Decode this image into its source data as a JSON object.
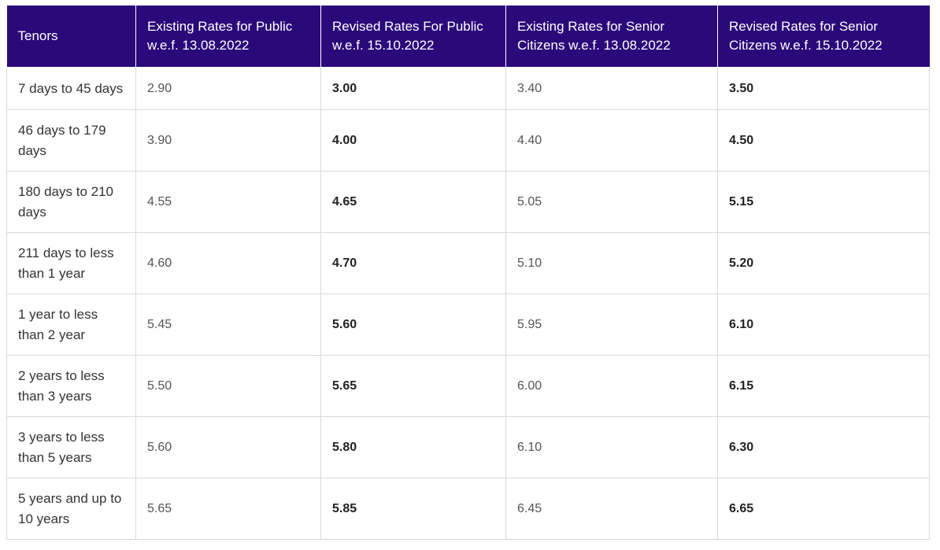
{
  "table": {
    "headers": [
      "Tenors",
      "Existing Rates for Public w.e.f. 13.08.2022",
      "Revised Rates For Public w.e.f. 15.10.2022",
      "Existing Rates for Senior Citizens w.e.f. 13.08.2022",
      "Revised Rates for Senior Citizens w.e.f. 15.10.2022"
    ],
    "rows": [
      [
        "7 days to 45 days",
        "2.90",
        "3.00",
        "3.40",
        "3.50"
      ],
      [
        "46 days to 179 days",
        "3.90",
        "4.00",
        "4.40",
        "4.50"
      ],
      [
        "180 days to 210 days",
        "4.55",
        "4.65",
        "5.05",
        "5.15"
      ],
      [
        "211 days to less than 1 year",
        "4.60",
        "4.70",
        "5.10",
        "5.20"
      ],
      [
        "1 year to less than 2 year",
        "5.45",
        "5.60",
        "5.95",
        "6.10"
      ],
      [
        "2 years to less than 3 years",
        "5.50",
        "5.65",
        "6.00",
        "6.15"
      ],
      [
        "3 years to less than 5 years",
        "5.60",
        "5.80",
        "6.10",
        "6.30"
      ],
      [
        "5 years and up to 10 years",
        "5.65",
        "5.85",
        "6.45",
        "6.65"
      ]
    ]
  },
  "colors": {
    "header_background": "#2a0a7a",
    "header_text": "#ffffff",
    "border": "#d9d9d9"
  }
}
